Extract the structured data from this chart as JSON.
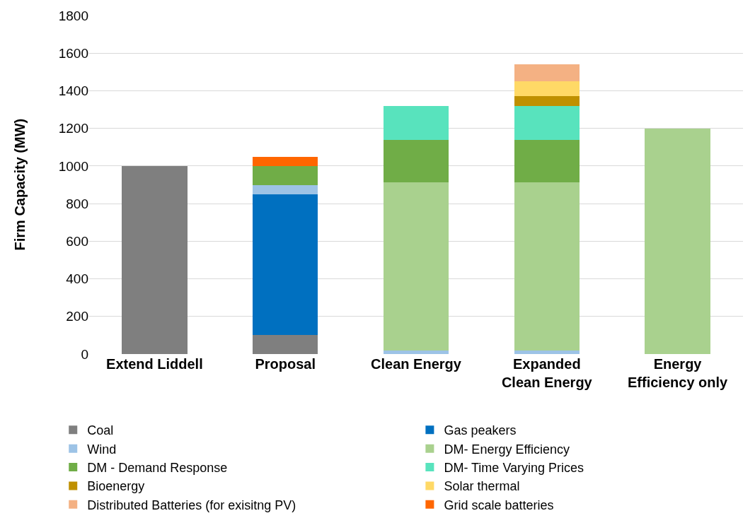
{
  "chart_data": {
    "type": "bar",
    "ylabel": "Firm Capacity (MW)",
    "categories": [
      "Extend Liddell",
      "Proposal",
      "Clean Energy",
      "Expanded Clean Energy",
      "Energy Efficiency only"
    ],
    "stacked": true,
    "ylim": [
      0,
      1800
    ],
    "yticks": [
      0,
      200,
      400,
      600,
      800,
      1000,
      1200,
      1400,
      1600,
      1800
    ],
    "grid": "y",
    "legend": "bottom",
    "series": [
      {
        "name": "Coal",
        "color": "#7f7f7f",
        "values": [
          1000,
          100,
          null,
          null,
          null
        ]
      },
      {
        "name": "Gas peakers",
        "color": "#0070c0",
        "values": [
          null,
          750,
          null,
          null,
          null
        ]
      },
      {
        "name": "Wind",
        "color": "#9dc3e6",
        "values": [
          null,
          50,
          20,
          20,
          null
        ]
      },
      {
        "name": "DM- Energy Efficiency",
        "color": "#a9d18e",
        "values": [
          null,
          null,
          895,
          895,
          1200
        ]
      },
      {
        "name": "DM - Demand Response",
        "color": "#70ad47",
        "values": [
          null,
          100,
          225,
          225,
          null
        ]
      },
      {
        "name": "DM- Time Varying Prices",
        "color": "#58e3bd",
        "values": [
          null,
          null,
          180,
          180,
          null
        ]
      },
      {
        "name": "Bioenergy",
        "color": "#bf9000",
        "values": [
          null,
          null,
          null,
          50,
          null
        ]
      },
      {
        "name": "Solar thermal",
        "color": "#ffd966",
        "values": [
          null,
          null,
          null,
          80,
          null
        ]
      },
      {
        "name": "Distributed Batteries (for exisitng PV)",
        "color": "#f4b183",
        "values": [
          null,
          null,
          null,
          90,
          null
        ]
      },
      {
        "name": "Grid scale batteries",
        "color": "#ff6600",
        "values": [
          null,
          50,
          null,
          null,
          null
        ]
      }
    ]
  }
}
